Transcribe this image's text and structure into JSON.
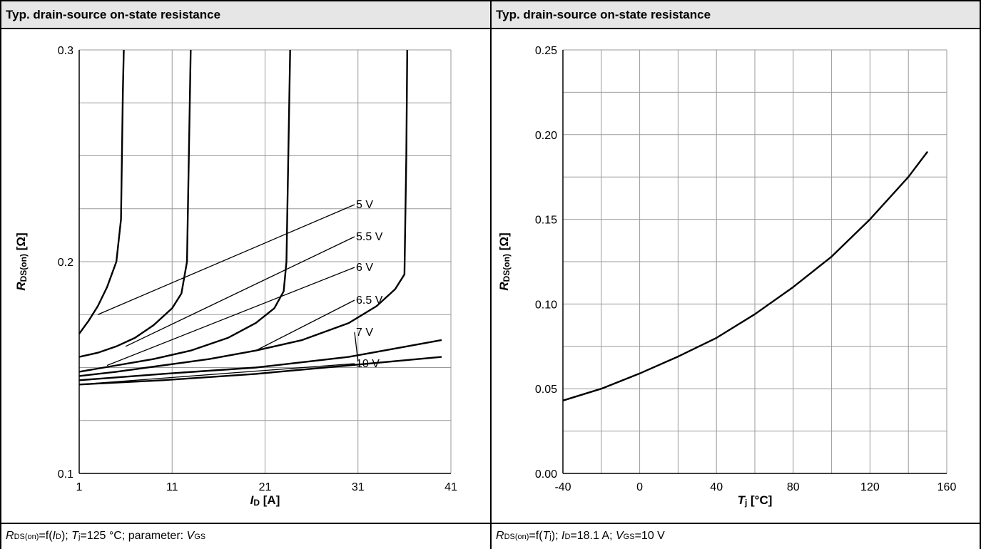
{
  "chart_data": [
    {
      "type": "line",
      "title": "Typ. drain-source on-state resistance",
      "ylabel": {
        "main": "R",
        "sub": "DS(on)",
        "unit": "[Ω]"
      },
      "xlabel": {
        "main": "I",
        "sub": "D",
        "unit": "[A]"
      },
      "xlim": [
        1,
        41
      ],
      "ylim": [
        0.1,
        0.3
      ],
      "x_ticks": [
        "1",
        "11",
        "21",
        "31",
        "41"
      ],
      "y_ticks": [
        "0.1",
        "0.2",
        "0.3"
      ],
      "grid": true,
      "caption": {
        "p1": "R",
        "p1s": "DS(on)",
        "p2": "=f(",
        "p3": "I",
        "p3s": "D",
        "p4": "); ",
        "p5": "T",
        "p5s": "j",
        "p6": "=125 °C; parameter: ",
        "p7": "V",
        "p7s": "GS"
      },
      "series": [
        {
          "name": "5 V",
          "label_anchor": [
            3.0,
            0.175
          ],
          "x": [
            1,
            2,
            3,
            4,
            5,
            5.5,
            5.6,
            5.7,
            5.8
          ],
          "y": [
            0.166,
            0.172,
            0.179,
            0.188,
            0.2,
            0.22,
            0.25,
            0.28,
            0.3
          ]
        },
        {
          "name": "5.5 V",
          "label_anchor": [
            6.0,
            0.16
          ],
          "x": [
            1,
            3,
            5,
            7,
            9,
            11,
            12,
            12.6,
            12.8,
            13.0
          ],
          "y": [
            0.155,
            0.157,
            0.16,
            0.164,
            0.17,
            0.178,
            0.185,
            0.2,
            0.25,
            0.3
          ]
        },
        {
          "name": "6 V",
          "label_anchor": [
            4.0,
            0.151
          ],
          "x": [
            1,
            5,
            9,
            13,
            17,
            20,
            22,
            23,
            23.3,
            23.5,
            23.7
          ],
          "y": [
            0.148,
            0.151,
            0.154,
            0.158,
            0.164,
            0.171,
            0.178,
            0.186,
            0.2,
            0.25,
            0.3
          ]
        },
        {
          "name": "6.5 V",
          "label_anchor": [
            20.0,
            0.158
          ],
          "x": [
            1,
            5,
            10,
            15,
            20,
            25,
            30,
            33,
            35,
            36,
            36.2,
            36.3
          ],
          "y": [
            0.146,
            0.148,
            0.151,
            0.154,
            0.158,
            0.163,
            0.171,
            0.179,
            0.187,
            0.194,
            0.25,
            0.3
          ]
        },
        {
          "name": "7 V",
          "label_anchor": [
            31.0,
            0.153
          ],
          "x": [
            1,
            10,
            20,
            30,
            35,
            40
          ],
          "y": [
            0.144,
            0.147,
            0.15,
            0.155,
            0.159,
            0.163
          ]
        },
        {
          "name": "10 V",
          "label_anchor": [
            1.0,
            0.142
          ],
          "x": [
            1,
            10,
            20,
            30,
            40
          ],
          "y": [
            0.142,
            0.144,
            0.147,
            0.151,
            0.155
          ]
        }
      ]
    },
    {
      "type": "line",
      "title": "Typ. drain-source on-state resistance",
      "ylabel": {
        "main": "R",
        "sub": "DS(on)",
        "unit": "[Ω]"
      },
      "xlabel": {
        "main": "T",
        "sub": "j",
        "unit": "[°C]"
      },
      "xlim": [
        -40,
        160
      ],
      "ylim": [
        0,
        0.25
      ],
      "x_ticks": [
        "-40",
        "0",
        "40",
        "80",
        "120",
        "160"
      ],
      "y_ticks": [
        "0.00",
        "0.05",
        "0.10",
        "0.15",
        "0.20",
        "0.25"
      ],
      "grid": true,
      "caption": {
        "p1": "R",
        "p1s": "DS(on)",
        "p2": "=f(",
        "p3": "T",
        "p3s": "j",
        "p4": "); ",
        "p5": "I",
        "p5s": "D",
        "p6": "=18.1 A; ",
        "p7": "V",
        "p7s": "GS",
        "p8": "=10 V"
      },
      "series": [
        {
          "x": [
            -40,
            -20,
            0,
            20,
            40,
            60,
            80,
            100,
            120,
            140,
            150
          ],
          "y": [
            0.043,
            0.05,
            0.059,
            0.069,
            0.08,
            0.094,
            0.11,
            0.128,
            0.15,
            0.175,
            0.19
          ]
        }
      ]
    }
  ]
}
